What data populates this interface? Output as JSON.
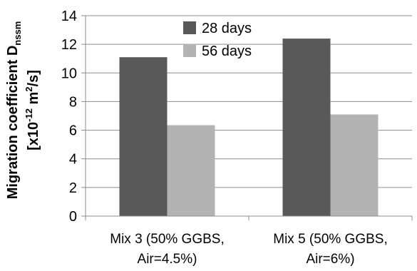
{
  "chart_data": {
    "type": "bar",
    "categories": [
      [
        "Mix 3 (50% GGBS,",
        "Air=4.5%)"
      ],
      [
        "Mix 5 (50% GGBS,",
        "Air=6%)"
      ]
    ],
    "series": [
      {
        "name": "28 days",
        "values": [
          11.1,
          12.4
        ],
        "color": "#595959"
      },
      {
        "name": "56 days",
        "values": [
          6.35,
          7.1
        ],
        "color": "#b3b3b3"
      }
    ],
    "ylabel_line1": "Migration coefficient D",
    "ylabel_subscript": "nssm",
    "ylabel_line2_pre": "[x10",
    "ylabel_line2_exp1": "-12",
    "ylabel_line2_mid": " m",
    "ylabel_line2_exp2": "2",
    "ylabel_line2_post": "/s]",
    "xlabel": "",
    "ylim": [
      0,
      14
    ],
    "yticks": [
      0,
      2,
      4,
      6,
      8,
      10,
      12,
      14
    ],
    "grid": true,
    "legend_position": "top-center"
  }
}
